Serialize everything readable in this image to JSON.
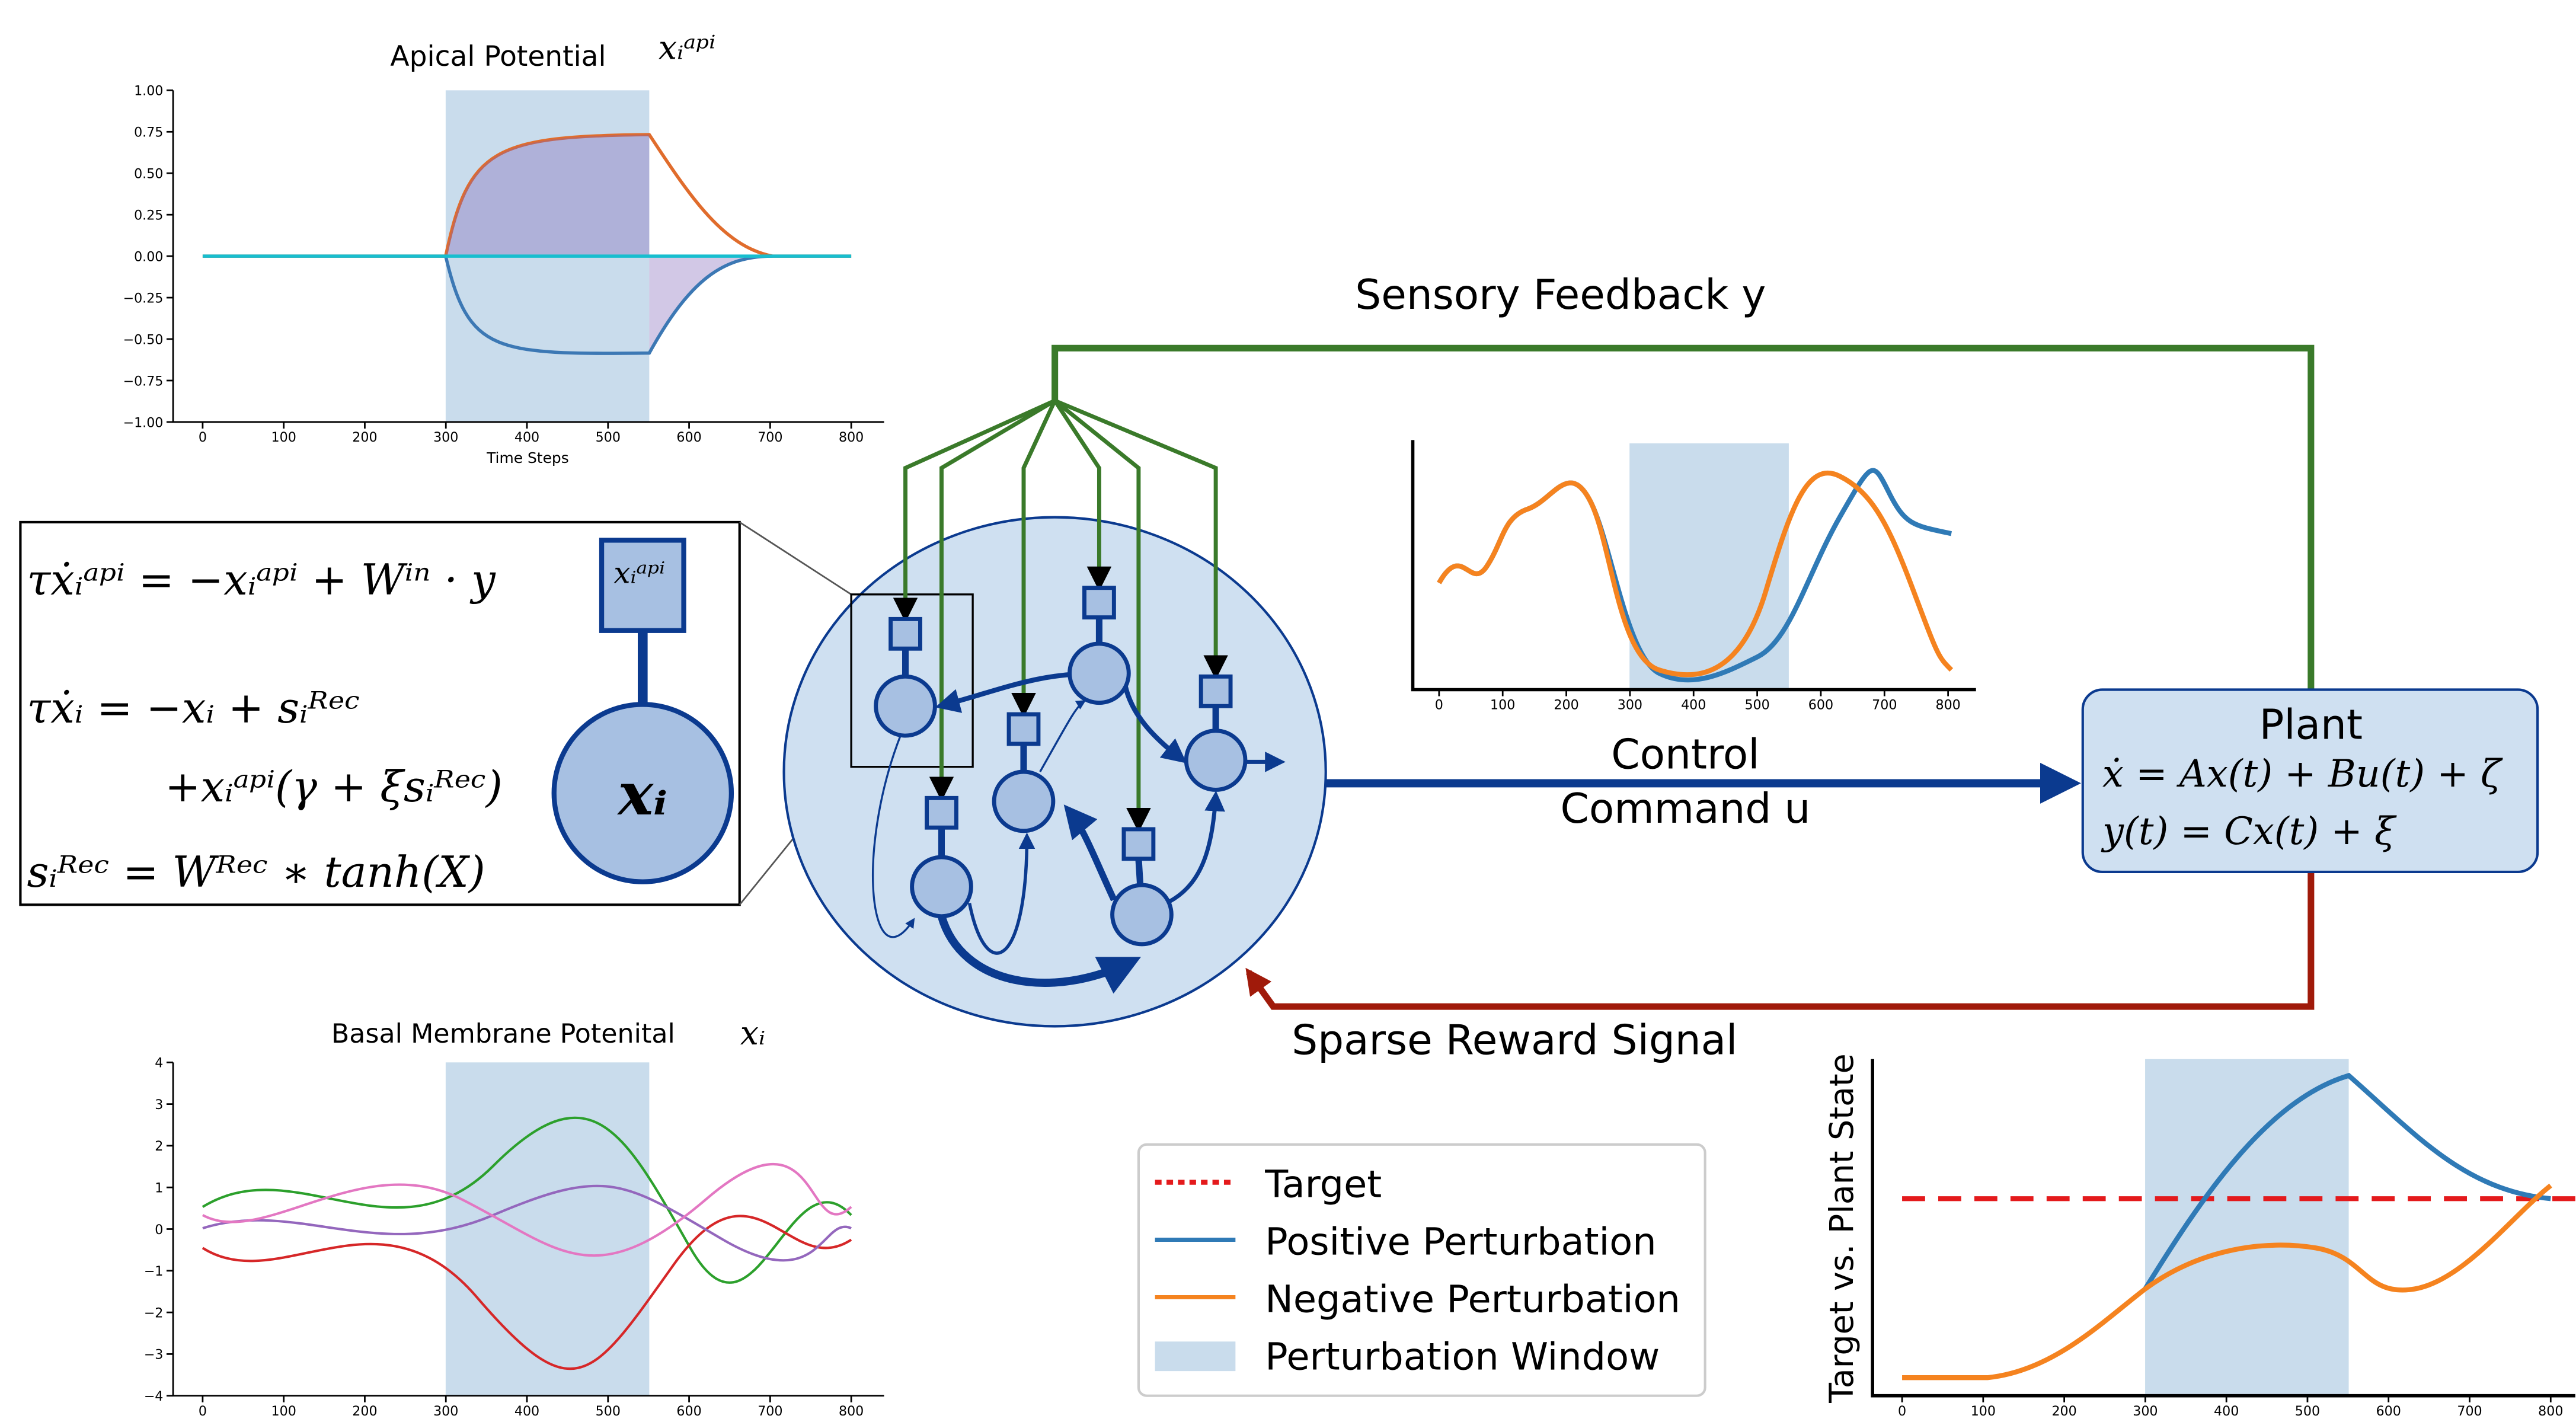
{
  "apical_panel": {
    "title": "Apical Potential",
    "symbol": "xᵢᵃᵖⁱ",
    "xlabel": "Time Steps",
    "yticks": [
      "1.00",
      "0.75",
      "0.50",
      "0.25",
      "0.00",
      "−0.25",
      "−0.50",
      "−0.75",
      "−1.00"
    ],
    "xticks": [
      "0",
      "100",
      "200",
      "300",
      "400",
      "500",
      "600",
      "700",
      "800"
    ]
  },
  "basal_panel": {
    "title": "Basal Membrane Potenital",
    "symbol": "xᵢ",
    "yticks": [
      "4",
      "3",
      "2",
      "1",
      "0",
      "−1",
      "−2",
      "−3",
      "−4"
    ],
    "xticks": [
      "0",
      "100",
      "200",
      "300",
      "400",
      "500",
      "600",
      "700",
      "800"
    ]
  },
  "command_panel": {
    "xticks": [
      "0",
      "100",
      "200",
      "300",
      "400",
      "500",
      "600",
      "700",
      "800"
    ]
  },
  "state_panel": {
    "ylabel": "Target vs. Plant State",
    "xticks": [
      "0",
      "100",
      "200",
      "300",
      "400",
      "500",
      "600",
      "700",
      "800"
    ]
  },
  "equations": {
    "apical": "τẋᵢᵃᵖⁱ = −xᵢᵃᵖⁱ + Wⁱⁿ · y",
    "basal_1": "τẋᵢ = −xᵢ + sᵢᴿᵉᶜ",
    "basal_2": "+xᵢᵃᵖⁱ(γ + ξsᵢᴿᵉᶜ)",
    "recurrent": "sᵢᴿᵉᶜ = Wᴿᵉᶜ ∗ tanh(X)",
    "apical_node": "xᵢᵃᵖⁱ",
    "basal_node": "xᵢ"
  },
  "arrows": {
    "feedback": "Sensory Feedback y",
    "control_1": "Control",
    "control_2": "Command u",
    "reward": "Sparse Reward Signal"
  },
  "plant": {
    "title": "Plant",
    "eq_1": "ẋ = Ax(t) + Bu(t) + ζ",
    "eq_2": "y(t) = Cx(t) + ξ"
  },
  "legend": {
    "items": [
      "Target",
      "Positive Perturbation",
      "Negative Perturbation",
      "Perturbation Window"
    ]
  }
}
